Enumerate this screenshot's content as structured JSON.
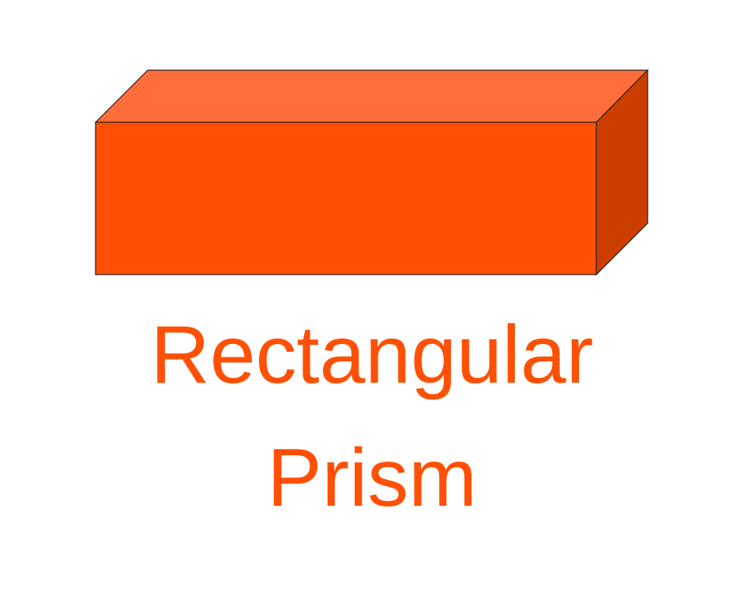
{
  "figure": {
    "caption_line1": "Rectangular",
    "caption_line2": "Prism"
  },
  "colors": {
    "front_face": "#ff5005",
    "top_face": "#ff6e3a",
    "side_face": "#cc3e00",
    "outline": "#222222",
    "caption_text": "#ff5005",
    "background": "#ffffff"
  }
}
